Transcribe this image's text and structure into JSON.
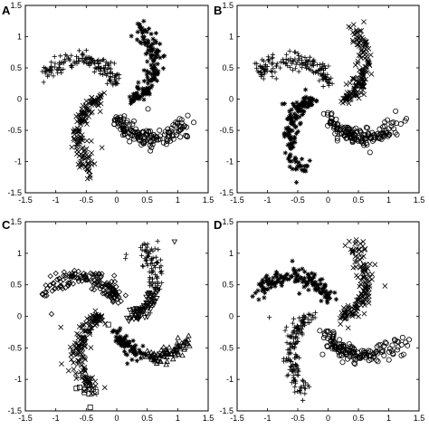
{
  "chart_data": [
    {
      "panel": "A",
      "type": "scatter",
      "xlim": [
        -1.5,
        1.5
      ],
      "ylim": [
        -1.5,
        1.5
      ],
      "xticks": [
        "-1.5",
        "-1",
        "-0.5",
        "0",
        "0.5",
        "1",
        "1.5"
      ],
      "yticks": [
        "-1.5",
        "-1",
        "-0.5",
        "0",
        "0.5",
        "1",
        "1.5"
      ],
      "grid": false,
      "series": [
        {
          "marker": "plus",
          "arm": "top",
          "values": "four spiral arms, top cluster"
        },
        {
          "marker": "cross",
          "arm": "left",
          "values": "left cluster"
        },
        {
          "marker": "circle",
          "arm": "bottom",
          "values": "bottom cluster"
        },
        {
          "marker": "asterisk",
          "arm": "right",
          "values": "right cluster"
        }
      ]
    },
    {
      "panel": "B",
      "type": "scatter",
      "xlim": [
        -1.5,
        1.5
      ],
      "ylim": [
        -1.5,
        1.5
      ],
      "xticks": [
        "-1.5",
        "-1",
        "-0.5",
        "0",
        "0.5",
        "1",
        "1.5"
      ],
      "yticks": [
        "-1.5",
        "-1",
        "-0.5",
        "0",
        "0.5",
        "1",
        "1.5"
      ],
      "grid": false,
      "series": [
        {
          "marker": "plus",
          "arm": "top"
        },
        {
          "marker": "asterisk",
          "arm": "left"
        },
        {
          "marker": "circle",
          "arm": "bottom"
        },
        {
          "marker": "cross",
          "arm": "right"
        }
      ]
    },
    {
      "panel": "C",
      "type": "scatter",
      "xlim": [
        -1.5,
        1.5
      ],
      "ylim": [
        -1.5,
        1.5
      ],
      "xticks": [
        "-1.5",
        "-1",
        "-0.5",
        "0",
        "0.5",
        "1",
        "1.5"
      ],
      "yticks": [
        "-1.5",
        "-1",
        "-0.5",
        "0",
        "0.5",
        "1",
        "1.5"
      ],
      "grid": false,
      "series": [
        {
          "marker": "diamond",
          "arm": "top"
        },
        {
          "marker": "cross",
          "arm": "left"
        },
        {
          "marker": "square",
          "arm": "left-tail"
        },
        {
          "marker": "asterisk",
          "arm": "bottom"
        },
        {
          "marker": "triangle-up",
          "arm": "bottom"
        },
        {
          "marker": "triangle-down",
          "arm": "right"
        },
        {
          "marker": "plus",
          "arm": "right"
        }
      ]
    },
    {
      "panel": "D",
      "type": "scatter",
      "xlim": [
        -1.5,
        1.5
      ],
      "ylim": [
        -1.5,
        1.5
      ],
      "xticks": [
        "-1.5",
        "-1",
        "-0.5",
        "0",
        "0.5",
        "1",
        "1.5"
      ],
      "yticks": [
        "-1.5",
        "-1",
        "-0.5",
        "0",
        "0.5",
        "1",
        "1.5"
      ],
      "grid": false,
      "series": [
        {
          "marker": "asterisk",
          "arm": "top"
        },
        {
          "marker": "plus",
          "arm": "left"
        },
        {
          "marker": "circle",
          "arm": "bottom"
        },
        {
          "marker": "cross",
          "arm": "right"
        }
      ]
    }
  ],
  "panel_labels": [
    "A",
    "B",
    "C",
    "D"
  ]
}
